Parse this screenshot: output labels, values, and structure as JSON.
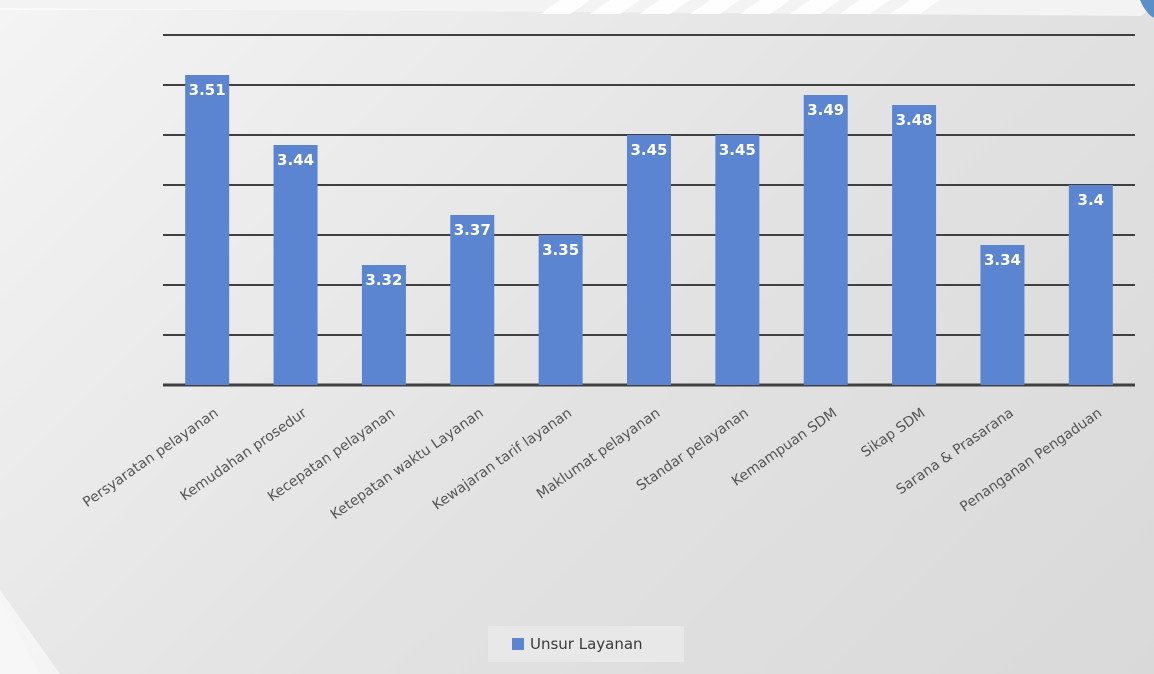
{
  "chart_data": {
    "type": "bar",
    "categories": [
      "Persyaratan pelayanan",
      "Kemudahan prosedur",
      "Kecepatan pelayanan",
      "Ketepatan waktu Layanan",
      "Kewajaran tarif layanan",
      "Maklumat pelayanan",
      "Standar pelayanan",
      "Kemampuan SDM",
      "Sikap SDM",
      "Sarana & Prasarana",
      "Penanganan Pengaduan"
    ],
    "series": [
      {
        "name": "Unsur Layanan",
        "values": [
          3.51,
          3.44,
          3.32,
          3.37,
          3.35,
          3.45,
          3.45,
          3.49,
          3.48,
          3.34,
          3.4
        ]
      }
    ],
    "data_labels": [
      "3.51",
      "3.44",
      "3.32",
      "3.37",
      "3.35",
      "3.45",
      "3.45",
      "3.49",
      "3.48",
      "3.34",
      "3.4"
    ],
    "title": "",
    "xlabel": "",
    "ylabel": "",
    "ylim": [
      3.2,
      3.55
    ],
    "gridlines": [
      3.2,
      3.25,
      3.3,
      3.35,
      3.4,
      3.45,
      3.5,
      3.55
    ],
    "grid": true,
    "y_tick_labels_visible": false,
    "legend_position": "bottom",
    "colors": {
      "bar": "#5b85d1",
      "gridline": "#404040",
      "background": "#e6e6e6"
    }
  }
}
